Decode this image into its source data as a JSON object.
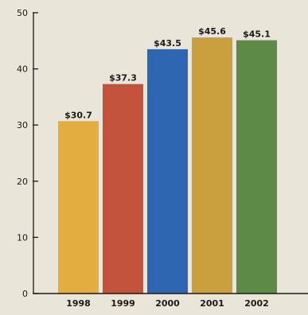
{
  "chart_data": {
    "type": "bar",
    "title": "",
    "xlabel": "",
    "ylabel": "",
    "categories": [
      "1998",
      "1999",
      "2000",
      "2001",
      "2002"
    ],
    "values": [
      30.7,
      37.3,
      43.5,
      45.6,
      45.1
    ],
    "value_labels": [
      "$30.7",
      "$37.3",
      "$43.5",
      "$45.6",
      "$45.1"
    ],
    "bar_colors": [
      "#e4ad3f",
      "#c4533d",
      "#2f66b1",
      "#caa03f",
      "#5d8a46"
    ],
    "ylim": [
      0,
      50
    ],
    "yticks": [
      0,
      10,
      20,
      30,
      40,
      50
    ],
    "grid": false,
    "legend": "none"
  }
}
